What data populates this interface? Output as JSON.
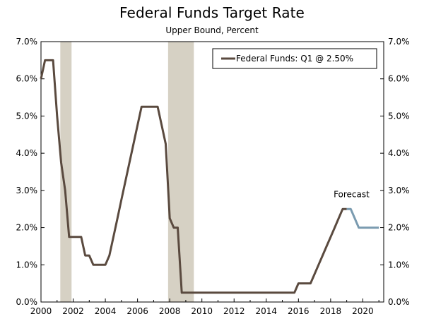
{
  "chart_data": {
    "type": "line",
    "title": "Federal Funds Target Rate",
    "subtitle": "Upper Bound, Percent",
    "xlabel": "",
    "ylabel": "",
    "xlim": [
      2000,
      2021.3
    ],
    "ylim": [
      0,
      7
    ],
    "x_ticks": [
      2000,
      2002,
      2004,
      2006,
      2008,
      2010,
      2012,
      2014,
      2016,
      2018,
      2020
    ],
    "x_tick_labels": [
      "2000",
      "2002",
      "2004",
      "2006",
      "2008",
      "2010",
      "2012",
      "2014",
      "2016",
      "2018",
      "2020"
    ],
    "y_ticks": [
      0,
      1,
      2,
      3,
      4,
      5,
      6,
      7
    ],
    "y_tick_labels": [
      "0.0%",
      "1.0%",
      "2.0%",
      "3.0%",
      "4.0%",
      "5.0%",
      "6.0%",
      "7.0%"
    ],
    "grid": false,
    "legend_position": "top-right",
    "recessions": [
      {
        "start": 2001.2,
        "end": 2001.9
      },
      {
        "start": 2007.9,
        "end": 2009.5
      }
    ],
    "series": [
      {
        "name": "Federal Funds: Q1 @ 2.50%",
        "color": "#5a4a3f",
        "x": [
          2000.0,
          2000.25,
          2000.5,
          2000.75,
          2001.0,
          2001.25,
          2001.5,
          2001.75,
          2002.0,
          2002.25,
          2002.5,
          2002.75,
          2003.0,
          2003.25,
          2003.5,
          2003.75,
          2004.0,
          2004.25,
          2004.5,
          2004.75,
          2005.0,
          2005.25,
          2005.5,
          2005.75,
          2006.0,
          2006.25,
          2006.5,
          2006.75,
          2007.0,
          2007.25,
          2007.5,
          2007.75,
          2008.0,
          2008.25,
          2008.5,
          2008.75,
          2009.0,
          2009.5,
          2010.0,
          2011.0,
          2012.0,
          2013.0,
          2014.0,
          2015.0,
          2015.75,
          2016.0,
          2016.25,
          2016.5,
          2016.75,
          2017.0,
          2017.25,
          2017.5,
          2017.75,
          2018.0,
          2018.25,
          2018.5,
          2018.75,
          2019.0
        ],
        "y": [
          6.0,
          6.5,
          6.5,
          6.5,
          5.0,
          3.75,
          3.0,
          1.75,
          1.75,
          1.75,
          1.75,
          1.25,
          1.25,
          1.0,
          1.0,
          1.0,
          1.0,
          1.25,
          1.75,
          2.25,
          2.75,
          3.25,
          3.75,
          4.25,
          4.75,
          5.25,
          5.25,
          5.25,
          5.25,
          5.25,
          4.75,
          4.25,
          2.25,
          2.0,
          2.0,
          0.25,
          0.25,
          0.25,
          0.25,
          0.25,
          0.25,
          0.25,
          0.25,
          0.25,
          0.25,
          0.5,
          0.5,
          0.5,
          0.5,
          0.75,
          1.0,
          1.25,
          1.5,
          1.75,
          2.0,
          2.25,
          2.5,
          2.5
        ]
      },
      {
        "name": "Forecast",
        "color": "#7a9bb0",
        "x": [
          2019.0,
          2019.25,
          2019.5,
          2019.75,
          2020.0,
          2020.25,
          2020.5,
          2020.75,
          2021.0
        ],
        "y": [
          2.5,
          2.5,
          2.25,
          2.0,
          2.0,
          2.0,
          2.0,
          2.0,
          2.0
        ]
      }
    ],
    "annotations": [
      {
        "text": "Forecast",
        "x": 2019.3,
        "y": 2.82
      }
    ],
    "legend_entries": [
      {
        "label": "Federal Funds: Q1 @ 2.50%",
        "color": "#5a4a3f"
      }
    ]
  }
}
